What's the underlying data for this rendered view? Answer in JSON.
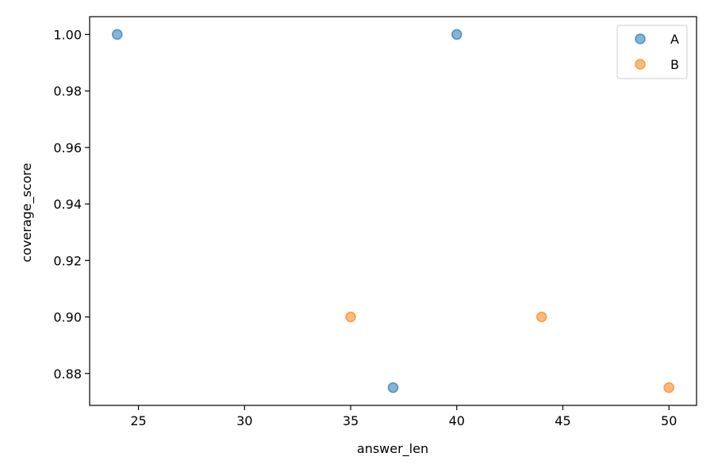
{
  "chart_data": {
    "type": "scatter",
    "title": "",
    "xlabel": "answer_len",
    "ylabel": "coverage_score",
    "xlim": [
      22.7,
      51.3
    ],
    "ylim": [
      0.8687,
      1.0063
    ],
    "xticks": [
      25,
      30,
      35,
      40,
      45,
      50
    ],
    "xtick_labels": [
      "25",
      "30",
      "35",
      "40",
      "45",
      "50"
    ],
    "yticks": [
      0.88,
      0.9,
      0.92,
      0.94,
      0.96,
      0.98,
      1.0
    ],
    "ytick_labels": [
      "0.88",
      "0.90",
      "0.92",
      "0.94",
      "0.96",
      "0.98",
      "1.00"
    ],
    "grid": false,
    "legend_position": "top-right",
    "series": [
      {
        "name": "A",
        "color": "#1f77b4",
        "points": [
          {
            "x": 24,
            "y": 1.0
          },
          {
            "x": 40,
            "y": 1.0
          },
          {
            "x": 37,
            "y": 0.875
          }
        ]
      },
      {
        "name": "B",
        "color": "#ff7f0e",
        "points": [
          {
            "x": 35,
            "y": 0.9
          },
          {
            "x": 44,
            "y": 0.9
          },
          {
            "x": 50,
            "y": 0.875
          }
        ]
      }
    ]
  }
}
